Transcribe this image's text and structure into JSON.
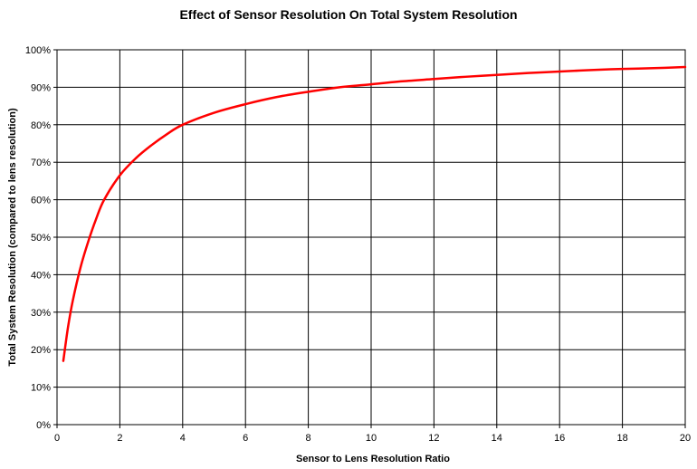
{
  "chart_data": {
    "type": "line",
    "title": "Effect of Sensor Resolution On Total System Resolution",
    "xlabel": "Sensor to Lens Resolution Ratio",
    "ylabel": "Total System Resolution (compared to lens resolution)",
    "xlim": [
      0,
      20
    ],
    "ylim": [
      0,
      100
    ],
    "xticks": [
      0,
      2,
      4,
      6,
      8,
      10,
      12,
      14,
      16,
      18,
      20
    ],
    "xtick_labels": [
      "0",
      "2",
      "4",
      "6",
      "8",
      "10",
      "12",
      "14",
      "16",
      "18",
      "20"
    ],
    "yticks": [
      0,
      10,
      20,
      30,
      40,
      50,
      60,
      70,
      80,
      90,
      100
    ],
    "ytick_labels": [
      "0%",
      "10%",
      "20%",
      "30%",
      "40%",
      "50%",
      "60%",
      "70%",
      "80%",
      "90%",
      "100%"
    ],
    "grid": true,
    "legend": "none",
    "series": [
      {
        "color": "#ff0000",
        "x": [
          0.2,
          0.35,
          0.5,
          0.75,
          1.0,
          1.25,
          1.5,
          2.0,
          2.5,
          3.0,
          3.5,
          4.0,
          5.0,
          6.0,
          7.0,
          8.0,
          9.0,
          10.0,
          11.0,
          12.0,
          13.0,
          14.0,
          15.0,
          16.0,
          17.0,
          18.0,
          19.0,
          20.0
        ],
        "y": [
          17,
          26,
          33,
          42,
          49,
          55,
          60,
          66.5,
          71,
          74.5,
          77.5,
          80,
          83.2,
          85.5,
          87.4,
          88.8,
          90,
          90.8,
          91.6,
          92.2,
          92.8,
          93.3,
          93.8,
          94.2,
          94.6,
          94.9,
          95.1,
          95.4
        ]
      }
    ]
  }
}
